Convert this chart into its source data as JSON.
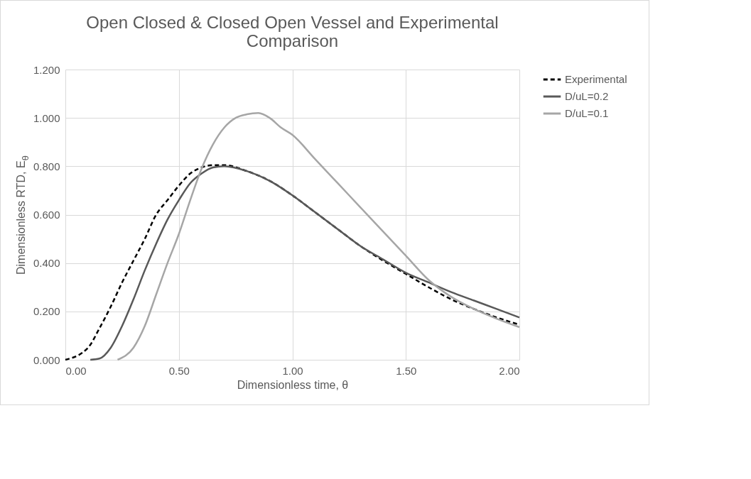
{
  "chart_data": {
    "type": "line",
    "title": "Open Closed & Closed Open Vessel and Experimental Comparison",
    "xlabel": "Dimensionless time, θ",
    "ylabel": "Dimensionless RTD, E$_{θ}$",
    "xlim": [
      0,
      2
    ],
    "xticks": [
      {
        "value": 0,
        "label": "0.00"
      },
      {
        "value": 0.5,
        "label": "0.50"
      },
      {
        "value": 1,
        "label": "1.00"
      },
      {
        "value": 1.5,
        "label": "1.50"
      },
      {
        "value": 2,
        "label": "2.00"
      }
    ],
    "ylim": [
      0,
      1.2
    ],
    "yticks": [
      {
        "value": 0,
        "label": "0.000"
      },
      {
        "value": 0.2,
        "label": "0.200"
      },
      {
        "value": 0.4,
        "label": "0.400"
      },
      {
        "value": 0.6,
        "label": "0.600"
      },
      {
        "value": 0.8,
        "label": "0.800"
      },
      {
        "value": 1,
        "label": "1.000"
      },
      {
        "value": 1.2,
        "label": "1.200"
      }
    ],
    "grid": true,
    "legend": "right",
    "marker": "none",
    "series": [
      {
        "name": "Experimental",
        "color": "#000000",
        "line_style": "dashed",
        "x": [
          0,
          0.1,
          0.15,
          0.2,
          0.25,
          0.3,
          0.35,
          0.4,
          0.45,
          0.5,
          0.55,
          0.6,
          0.65,
          0.7,
          0.8,
          0.9,
          1.0,
          1.1,
          1.2,
          1.3,
          1.4,
          1.5,
          1.6,
          1.7,
          1.8,
          1.9,
          2.0
        ],
        "values": [
          0,
          0.05,
          0.13,
          0.22,
          0.32,
          0.41,
          0.5,
          0.6,
          0.66,
          0.72,
          0.77,
          0.795,
          0.805,
          0.805,
          0.78,
          0.74,
          0.68,
          0.61,
          0.54,
          0.47,
          0.41,
          0.355,
          0.3,
          0.25,
          0.21,
          0.175,
          0.145
        ]
      },
      {
        "name": "D/uL=0.2",
        "color": "#595959",
        "line_style": "solid",
        "x": [
          0.11,
          0.15,
          0.2,
          0.25,
          0.3,
          0.35,
          0.4,
          0.45,
          0.5,
          0.55,
          0.6,
          0.65,
          0.7,
          0.8,
          0.9,
          1.0,
          1.1,
          1.2,
          1.3,
          1.4,
          1.5,
          1.6,
          1.7,
          1.8,
          1.9,
          2.0
        ],
        "values": [
          0,
          0.005,
          0.05,
          0.14,
          0.25,
          0.37,
          0.48,
          0.58,
          0.66,
          0.73,
          0.77,
          0.795,
          0.8,
          0.78,
          0.74,
          0.68,
          0.61,
          0.54,
          0.47,
          0.415,
          0.36,
          0.32,
          0.28,
          0.245,
          0.21,
          0.175
        ]
      },
      {
        "name": "D/uL=0.1",
        "color": "#a6a6a6",
        "line_style": "solid",
        "x": [
          0.23,
          0.3,
          0.35,
          0.4,
          0.45,
          0.5,
          0.55,
          0.6,
          0.65,
          0.7,
          0.75,
          0.8,
          0.85,
          0.9,
          0.95,
          1.0,
          1.1,
          1.2,
          1.3,
          1.4,
          1.5,
          1.6,
          1.7,
          1.8,
          1.9,
          2.0
        ],
        "values": [
          0,
          0.05,
          0.14,
          0.27,
          0.4,
          0.52,
          0.66,
          0.79,
          0.89,
          0.96,
          1.0,
          1.015,
          1.02,
          1.0,
          0.96,
          0.93,
          0.83,
          0.73,
          0.63,
          0.53,
          0.43,
          0.33,
          0.26,
          0.21,
          0.17,
          0.135
        ]
      }
    ]
  }
}
